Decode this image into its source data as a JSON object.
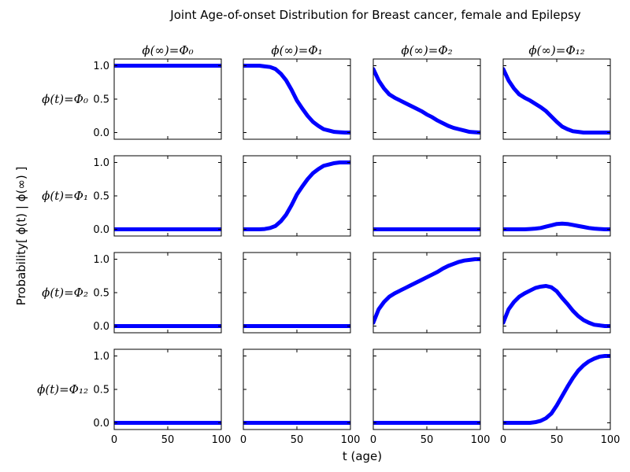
{
  "figure": {
    "title": "Joint Age-of-onset Distribution for Breast cancer, female and Epilepsy",
    "xlabel": "t (age)",
    "ylabel": "Probability[ ϕ(t) | ϕ(∞) ]"
  },
  "chart_data": {
    "type": "line",
    "grid": false,
    "line_color": "#0000ff",
    "xlim": [
      0,
      100
    ],
    "ylim": [
      -0.1,
      1.1
    ],
    "x_ticks": [
      "0",
      "50",
      "100"
    ],
    "y_ticks": [
      "0.0",
      "0.5",
      "1.0"
    ],
    "column_labels": [
      "ϕ(∞)=Φ₀",
      "ϕ(∞)=Φ₁",
      "ϕ(∞)=Φ₂",
      "ϕ(∞)=Φ₁₂"
    ],
    "row_labels": [
      "ϕ(t)=Φ₀",
      "ϕ(t)=Φ₁",
      "ϕ(t)=Φ₂",
      "ϕ(t)=Φ₁₂"
    ],
    "x": [
      0,
      5,
      10,
      15,
      20,
      25,
      30,
      35,
      40,
      45,
      50,
      55,
      60,
      65,
      70,
      75,
      80,
      85,
      90,
      95,
      100
    ],
    "panels": [
      [
        [
          1,
          1,
          1,
          1,
          1,
          1,
          1,
          1,
          1,
          1,
          1,
          1,
          1,
          1,
          1,
          1,
          1,
          1,
          1,
          1,
          1
        ],
        [
          1,
          1,
          1,
          1,
          0.99,
          0.98,
          0.95,
          0.88,
          0.78,
          0.64,
          0.48,
          0.36,
          0.25,
          0.16,
          0.1,
          0.05,
          0.03,
          0.01,
          0.005,
          0,
          0
        ],
        [
          0.95,
          0.78,
          0.66,
          0.57,
          0.52,
          0.48,
          0.44,
          0.4,
          0.36,
          0.32,
          0.27,
          0.23,
          0.18,
          0.14,
          0.1,
          0.07,
          0.05,
          0.03,
          0.01,
          0.005,
          0
        ],
        [
          0.95,
          0.78,
          0.66,
          0.57,
          0.52,
          0.48,
          0.43,
          0.38,
          0.32,
          0.24,
          0.16,
          0.09,
          0.05,
          0.02,
          0.01,
          0,
          0,
          0,
          0,
          0,
          0
        ]
      ],
      [
        [
          0,
          0,
          0,
          0,
          0,
          0,
          0,
          0,
          0,
          0,
          0,
          0,
          0,
          0,
          0,
          0,
          0,
          0,
          0,
          0,
          0
        ],
        [
          0,
          0,
          0,
          0,
          0.005,
          0.02,
          0.05,
          0.12,
          0.22,
          0.36,
          0.52,
          0.64,
          0.75,
          0.84,
          0.9,
          0.95,
          0.97,
          0.99,
          1,
          1,
          1
        ],
        [
          0,
          0,
          0,
          0,
          0,
          0,
          0,
          0,
          0,
          0,
          0,
          0,
          0,
          0,
          0,
          0,
          0,
          0,
          0,
          0,
          0
        ],
        [
          0,
          0,
          0,
          0,
          0,
          0.005,
          0.01,
          0.02,
          0.04,
          0.06,
          0.08,
          0.085,
          0.08,
          0.065,
          0.05,
          0.035,
          0.02,
          0.01,
          0.005,
          0,
          0
        ]
      ],
      [
        [
          0,
          0,
          0,
          0,
          0,
          0,
          0,
          0,
          0,
          0,
          0,
          0,
          0,
          0,
          0,
          0,
          0,
          0,
          0,
          0,
          0
        ],
        [
          0,
          0,
          0,
          0,
          0,
          0,
          0,
          0,
          0,
          0,
          0,
          0,
          0,
          0,
          0,
          0,
          0,
          0,
          0,
          0,
          0
        ],
        [
          0.05,
          0.25,
          0.36,
          0.44,
          0.49,
          0.53,
          0.57,
          0.61,
          0.65,
          0.69,
          0.73,
          0.77,
          0.81,
          0.86,
          0.9,
          0.93,
          0.96,
          0.98,
          0.99,
          1,
          1
        ],
        [
          0.05,
          0.25,
          0.36,
          0.44,
          0.49,
          0.53,
          0.57,
          0.59,
          0.6,
          0.58,
          0.52,
          0.42,
          0.33,
          0.23,
          0.15,
          0.09,
          0.05,
          0.02,
          0.01,
          0,
          0
        ]
      ],
      [
        [
          0,
          0,
          0,
          0,
          0,
          0,
          0,
          0,
          0,
          0,
          0,
          0,
          0,
          0,
          0,
          0,
          0,
          0,
          0,
          0,
          0
        ],
        [
          0,
          0,
          0,
          0,
          0,
          0,
          0,
          0,
          0,
          0,
          0,
          0,
          0,
          0,
          0,
          0,
          0,
          0,
          0,
          0,
          0
        ],
        [
          0,
          0,
          0,
          0,
          0,
          0,
          0,
          0,
          0,
          0,
          0,
          0,
          0,
          0,
          0,
          0,
          0,
          0,
          0,
          0,
          0
        ],
        [
          0,
          0,
          0,
          0,
          0,
          0,
          0.01,
          0.03,
          0.07,
          0.14,
          0.26,
          0.4,
          0.54,
          0.67,
          0.78,
          0.86,
          0.92,
          0.96,
          0.99,
          1,
          1
        ]
      ]
    ]
  }
}
